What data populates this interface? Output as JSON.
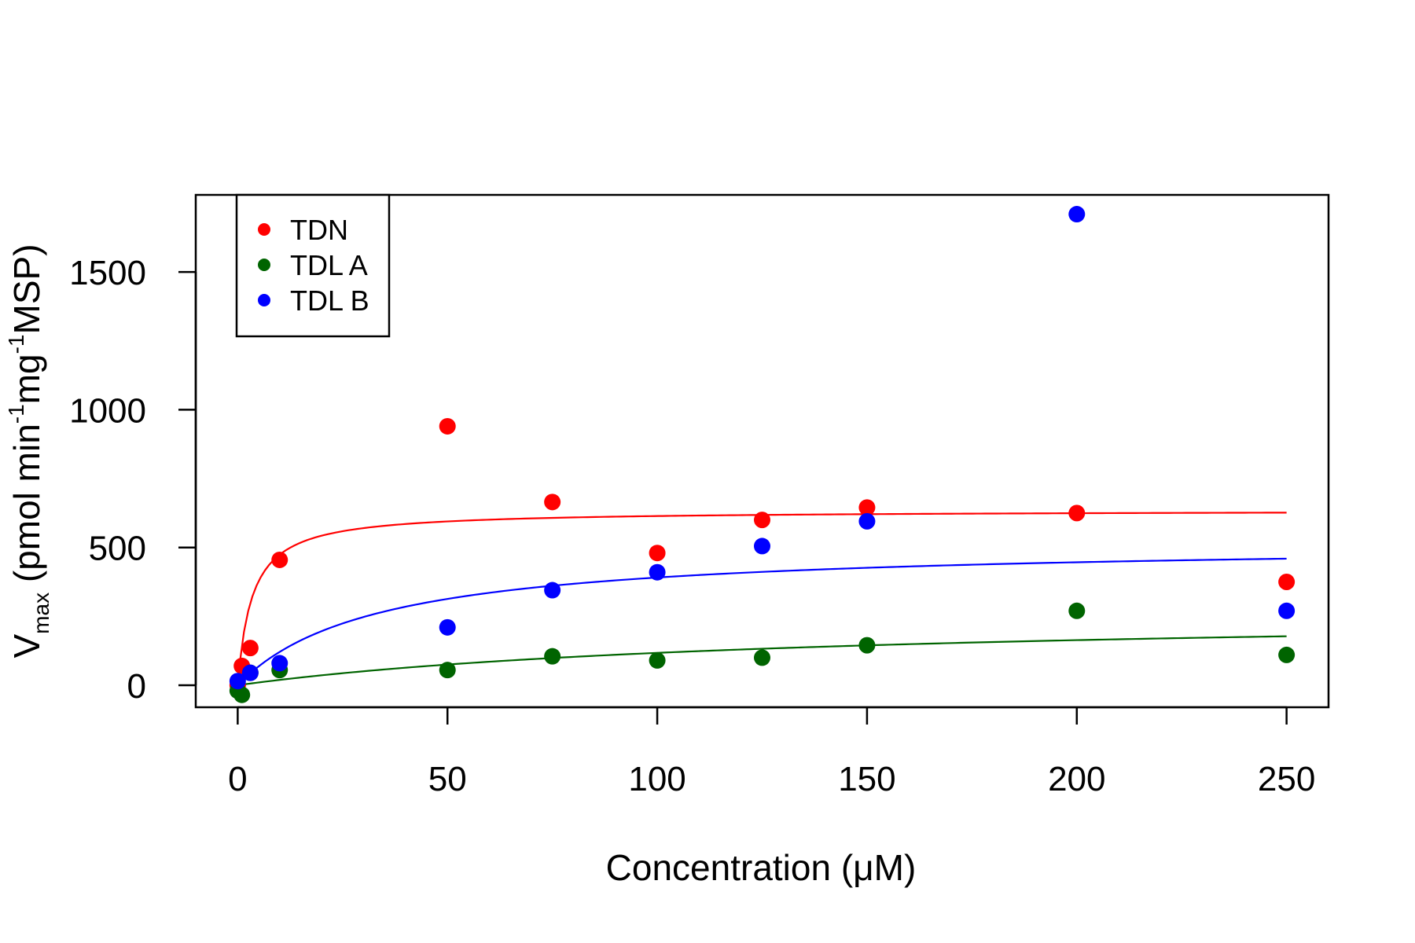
{
  "chart_data": {
    "type": "scatter",
    "title": "",
    "xlabel": "Concentration (μM)",
    "ylabel": {
      "v": "V",
      "sub": "max",
      "p1": " (pmol min",
      "sup1": "-1",
      "p2": "mg",
      "sup2": "-1",
      "p3": "MSP)"
    },
    "xlim": [
      -10,
      260
    ],
    "ylim": [
      -80,
      1780
    ],
    "x_ticks": [
      0,
      50,
      100,
      150,
      200,
      250
    ],
    "y_ticks": [
      0,
      500,
      1000,
      1500
    ],
    "grid": false,
    "legend_position": "top-left",
    "series": [
      {
        "name": "TDN",
        "color": "#ff0000",
        "x": [
          0,
          1,
          3,
          10,
          50,
          75,
          100,
          125,
          150,
          200,
          250
        ],
        "y": [
          0,
          70,
          135,
          455,
          940,
          665,
          480,
          600,
          645,
          625,
          375
        ],
        "fit": {
          "vmax": 635,
          "km": 3.4
        }
      },
      {
        "name": "TDL A",
        "color": "#006400",
        "x": [
          0,
          1,
          3,
          10,
          50,
          75,
          100,
          125,
          150,
          200,
          250
        ],
        "y": [
          -20,
          -35,
          45,
          55,
          55,
          105,
          90,
          100,
          145,
          270,
          110
        ],
        "fit": {
          "vmax": 270,
          "km": 130
        }
      },
      {
        "name": "TDL B",
        "color": "#0000ff",
        "x": [
          0,
          3,
          10,
          50,
          75,
          100,
          125,
          150,
          200,
          250
        ],
        "y": [
          15,
          45,
          80,
          210,
          345,
          410,
          505,
          595,
          1710,
          270
        ],
        "fit": {
          "vmax": 520,
          "km": 33
        }
      }
    ]
  }
}
